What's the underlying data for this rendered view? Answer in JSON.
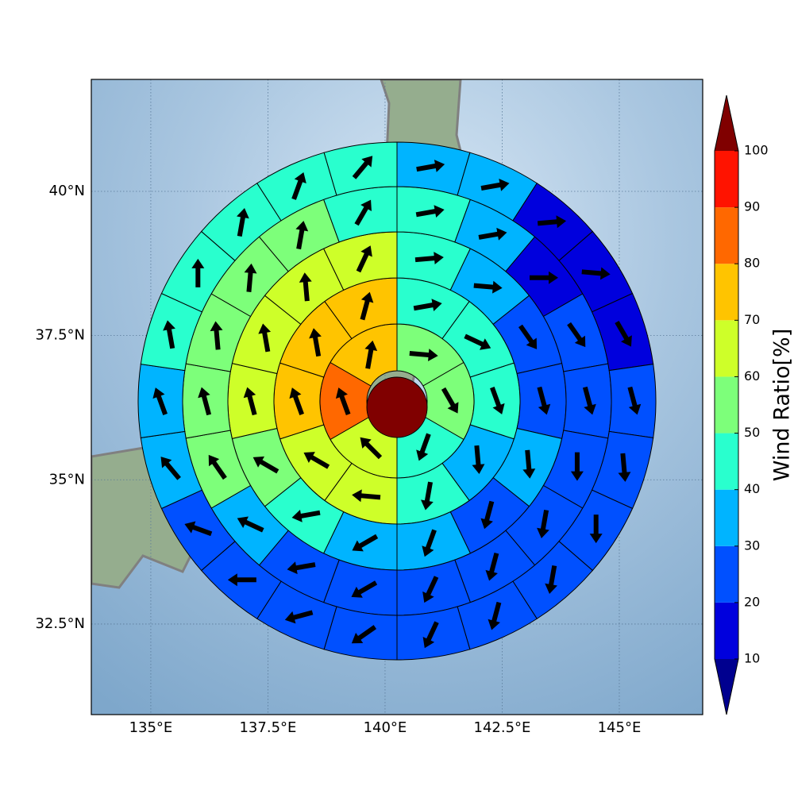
{
  "chart_data": {
    "type": "polar_wind_map",
    "xlim": [
      133.73,
      146.78
    ],
    "xticks": [
      {
        "value": 135,
        "label": "135°E"
      },
      {
        "value": 137.5,
        "label": "137.5°E"
      },
      {
        "value": 140,
        "label": "140°E"
      },
      {
        "value": 142.5,
        "label": "142.5°E"
      },
      {
        "value": 145,
        "label": "145°E"
      }
    ],
    "ylim": [
      30.93,
      41.94
    ],
    "yticks": [
      {
        "value": 32.5,
        "label": "32.5°N"
      },
      {
        "value": 35,
        "label": "35°N"
      },
      {
        "value": 37.5,
        "label": "37.5°N"
      },
      {
        "value": 40,
        "label": "40°N"
      }
    ],
    "grid": true,
    "center_value": 105,
    "rings": [
      {
        "values": [
          55,
          55,
          45,
          65,
          85,
          75
        ],
        "directions": [
          95,
          150,
          200,
          315,
          340,
          10
        ]
      },
      {
        "values": [
          45,
          45,
          45,
          35,
          45,
          65,
          65,
          75,
          75,
          75
        ],
        "directions": [
          80,
          115,
          160,
          175,
          190,
          275,
          300,
          340,
          350,
          15
        ]
      },
      {
        "values": [
          45,
          35,
          25,
          25,
          35,
          25,
          35,
          35,
          45,
          55,
          65,
          65,
          65,
          65
        ],
        "directions": [
          85,
          95,
          145,
          165,
          175,
          195,
          200,
          240,
          260,
          300,
          345,
          350,
          355,
          25
        ]
      },
      {
        "values": [
          45,
          35,
          15,
          25,
          25,
          25,
          25,
          25,
          25,
          25,
          25,
          35,
          55,
          55,
          55,
          55,
          55,
          45
        ],
        "directions": [
          80,
          80,
          90,
          145,
          165,
          180,
          190,
          195,
          205,
          240,
          260,
          295,
          325,
          345,
          355,
          5,
          10,
          30
        ]
      },
      {
        "values": [
          35,
          35,
          15,
          15,
          15,
          25,
          25,
          25,
          25,
          25,
          25,
          25,
          25,
          25,
          25,
          35,
          35,
          45,
          45,
          45,
          45,
          45
        ],
        "directions": [
          80,
          80,
          85,
          95,
          150,
          165,
          175,
          180,
          190,
          195,
          205,
          235,
          255,
          270,
          290,
          320,
          340,
          350,
          0,
          10,
          20,
          40
        ]
      }
    ],
    "colorbar": {
      "label": "Wind Ratio[%]",
      "levels": [
        10,
        20,
        30,
        40,
        50,
        60,
        70,
        80,
        90,
        100
      ],
      "colors": [
        "#0000dd",
        "#0050ff",
        "#00b4ff",
        "#29ffce",
        "#7dff7a",
        "#ceff29",
        "#ffc400",
        "#ff6800",
        "#ff1300"
      ],
      "under_color": "#00008f",
      "over_color": "#800000",
      "ticks": [
        10,
        20,
        30,
        40,
        50,
        60,
        70,
        80,
        90,
        100
      ]
    }
  }
}
